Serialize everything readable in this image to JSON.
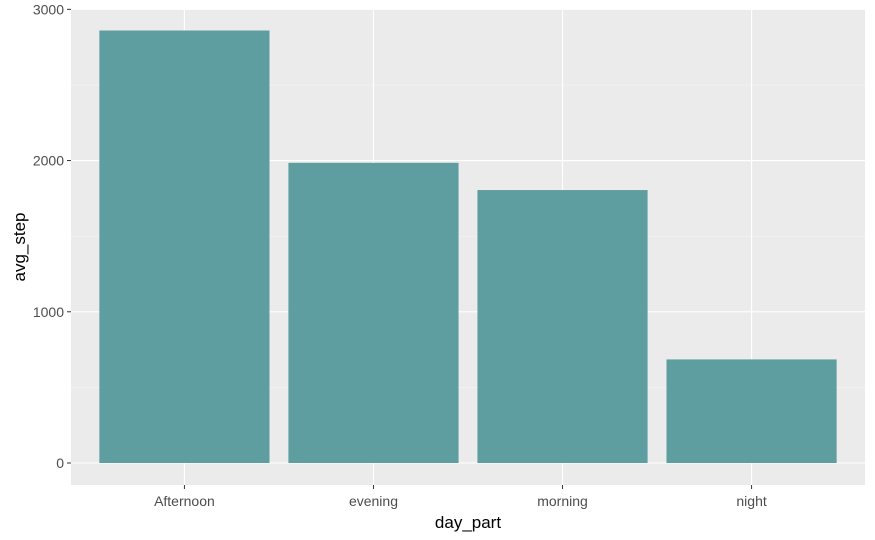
{
  "chart_data": {
    "type": "bar",
    "xlabel": "day_part",
    "ylabel": "avg_step",
    "categories": [
      "Afternoon",
      "evening",
      "morning",
      "night"
    ],
    "values": [
      2860,
      1985,
      1805,
      685
    ],
    "ylim": [
      0,
      3000
    ],
    "yticks": [
      0,
      1000,
      2000,
      3000
    ],
    "ytick_labels": [
      "0",
      "1000",
      "2000",
      "3000"
    ],
    "grid": true,
    "legend": "none"
  },
  "colors": {
    "bar": "#5f9ea0",
    "panel": "#ebebeb",
    "grid_major": "#ffffff",
    "grid_minor": "#f5f5f5"
  }
}
